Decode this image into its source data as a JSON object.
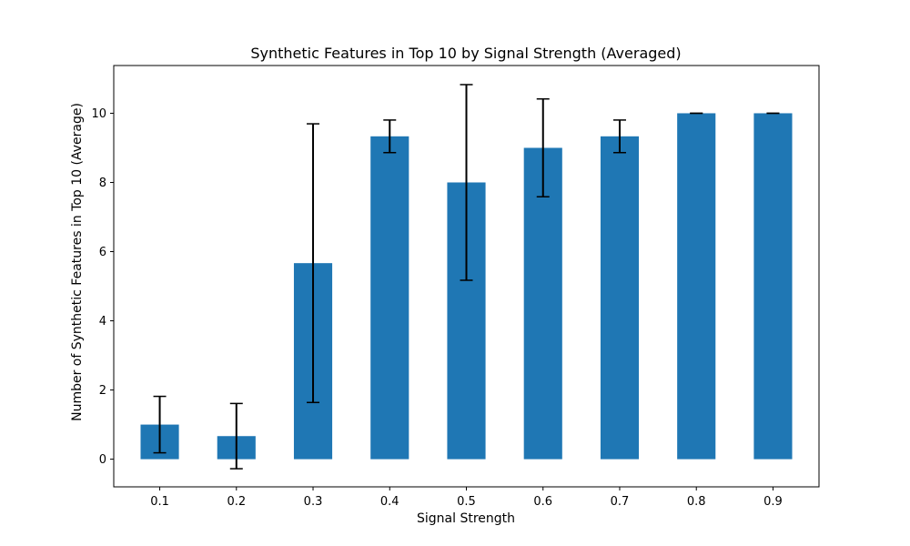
{
  "chart_data": {
    "type": "bar",
    "title": "Synthetic Features in Top 10 by Signal Strength (Averaged)",
    "xlabel": "Signal Strength",
    "ylabel": "Number of Synthetic Features in Top 10 (Average)",
    "categories": [
      "0.1",
      "0.2",
      "0.3",
      "0.4",
      "0.5",
      "0.6",
      "0.7",
      "0.8",
      "0.9"
    ],
    "values": [
      1.0,
      0.667,
      5.667,
      9.333,
      8.0,
      9.0,
      9.333,
      10.0,
      10.0
    ],
    "error": [
      0.816,
      0.943,
      4.028,
      0.471,
      2.828,
      1.414,
      0.471,
      0.0,
      0.0
    ],
    "ylim": [
      -0.8,
      11.38
    ],
    "yticks": [
      0,
      2,
      4,
      6,
      8,
      10
    ],
    "grid": false,
    "bar_color": "#1f77b4",
    "error_color": "#000000"
  }
}
